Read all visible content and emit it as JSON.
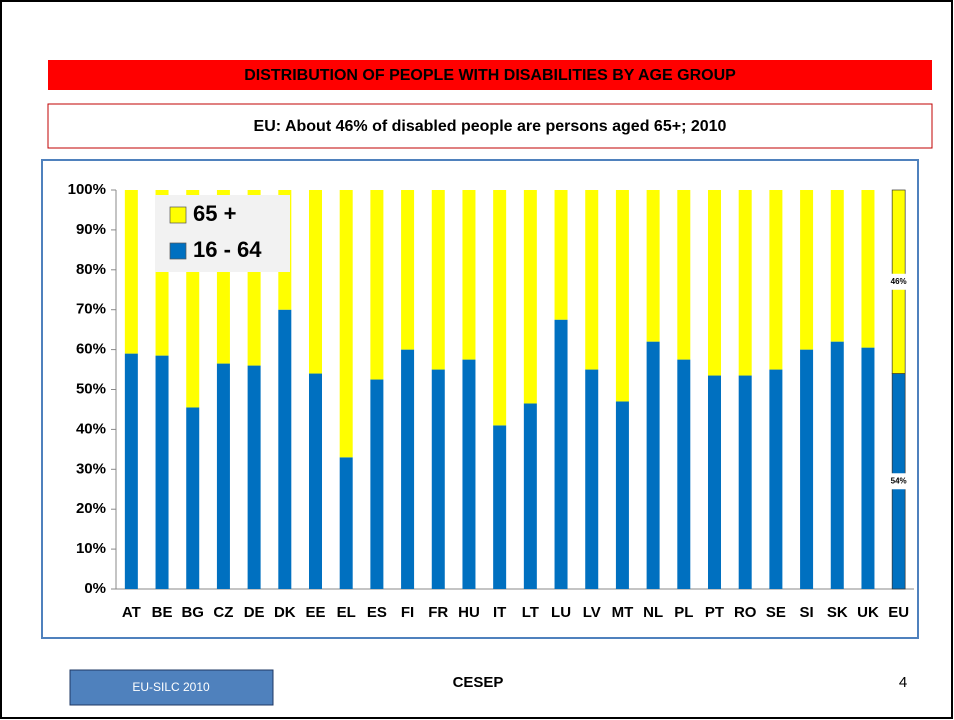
{
  "chart_data": {
    "type": "stacked_bar",
    "title": "DISTRIBUTION OF PEOPLE WITH DISABILITIES BY AGE GROUP",
    "subtitle": "EU: About 46% of disabled people are persons aged 65+; 2010",
    "categories": [
      "AT",
      "BE",
      "BG",
      "CZ",
      "DE",
      "DK",
      "EE",
      "EL",
      "ES",
      "FI",
      "FR",
      "HU",
      "IT",
      "LT",
      "LU",
      "LV",
      "MT",
      "NL",
      "PL",
      "PT",
      "RO",
      "SE",
      "SI",
      "SK",
      "UK",
      "EU"
    ],
    "series": [
      {
        "name": "16 - 64",
        "color": "#0070c0",
        "values": [
          59,
          58.5,
          45.5,
          56.5,
          56,
          70,
          54,
          33,
          52.5,
          60,
          55,
          57.5,
          41,
          46.5,
          67.5,
          55,
          47,
          62,
          57.5,
          53.5,
          53.5,
          55,
          60,
          62,
          60.5,
          54
        ],
        "value_labels": [
          null,
          null,
          null,
          null,
          null,
          null,
          null,
          null,
          null,
          null,
          null,
          null,
          null,
          null,
          null,
          null,
          null,
          null,
          null,
          null,
          null,
          null,
          null,
          null,
          null,
          "54%"
        ]
      },
      {
        "name": "65 +",
        "color": "#ffff00",
        "values": [
          41,
          41.5,
          54.5,
          43.5,
          44,
          30,
          46,
          67,
          47.5,
          40,
          45,
          42.5,
          59,
          53.5,
          32.5,
          45,
          53,
          38,
          42.5,
          46.5,
          46.5,
          45,
          40,
          38,
          39.5,
          46
        ],
        "value_labels": [
          null,
          null,
          null,
          null,
          null,
          null,
          null,
          null,
          null,
          null,
          null,
          null,
          null,
          null,
          null,
          null,
          null,
          null,
          null,
          null,
          null,
          null,
          null,
          null,
          null,
          "46%"
        ]
      }
    ],
    "ylim": [
      0,
      100
    ],
    "yticks": [
      {
        "value": 0,
        "label": "0%"
      },
      {
        "value": 10,
        "label": "10%"
      },
      {
        "value": 20,
        "label": "20%"
      },
      {
        "value": 30,
        "label": "30%"
      },
      {
        "value": 40,
        "label": "40%"
      },
      {
        "value": 50,
        "label": "50%"
      },
      {
        "value": 60,
        "label": "60%"
      },
      {
        "value": 70,
        "label": "70%"
      },
      {
        "value": 80,
        "label": "80%"
      },
      {
        "value": 90,
        "label": "90%"
      },
      {
        "value": 100,
        "label": "100%"
      }
    ],
    "legend": "upper left"
  },
  "footer": {
    "source": "EU-SILC 2010",
    "center": "CESEP",
    "page": "4"
  }
}
